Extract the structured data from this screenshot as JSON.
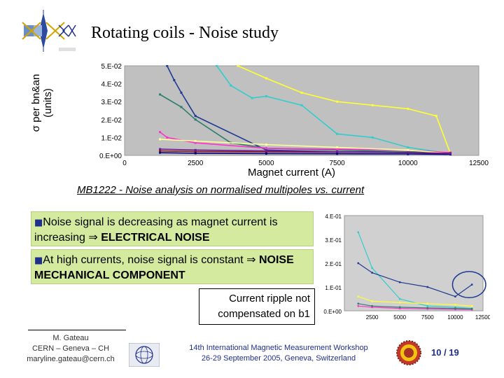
{
  "slide": {
    "title": "Rotating coils - Noise study",
    "caption": "MB1222 - Noise analysis on normalised multipoles vs. current",
    "notes": [
      {
        "text": "Noise signal is decreasing as magnet current is increasing ⇒ ",
        "emphasis": "ELECTRICAL NOISE"
      },
      {
        "text": "At high currents, noise signal is constant ⇒ ",
        "emphasis": "NOISE MECHANICAL COMPONENT"
      }
    ],
    "ripple_note": "Current ripple not compensated on b1",
    "footer": {
      "author_lines": [
        "M. Gateau",
        "CERN – Geneva – CH",
        "maryline.gateau@cern.ch"
      ],
      "workshop_lines": [
        "14th International Magnetic Measurement Workshop",
        "26-29 September 2005, Geneva, Switzerland"
      ],
      "page": "10 / 19"
    },
    "logo_icon": "immw-logo-icon",
    "cern_icon": "cern-logo-icon",
    "seal_icon": "university-seal-icon"
  },
  "chart_data": [
    {
      "type": "line",
      "ylabel": [
        "σ per bn&an",
        "(units)"
      ],
      "xlabel": "Magnet current (A)",
      "xlim": [
        0,
        12500
      ],
      "ylim": [
        0,
        0.05
      ],
      "xticks": [
        0,
        2500,
        5000,
        7500,
        10000,
        12500
      ],
      "yticks": [
        0,
        0.01,
        0.02,
        0.03,
        0.04,
        0.05
      ],
      "xtick_labels": [
        "0",
        "2500",
        "5000",
        "7500",
        "10000",
        "12500"
      ],
      "ytick_labels": [
        "0.E+00",
        "1.E-02",
        "2.E-02",
        "3.E-02",
        "4.E-02",
        "5.E-02"
      ],
      "grid": false,
      "colors": {
        "plot_bg": "#c0c0c0",
        "frame": "#9a9a9a"
      },
      "series": [
        {
          "color": "#1f3a93",
          "x": [
            1500,
            1750,
            2000,
            2500,
            5000,
            7500,
            10000,
            11500
          ],
          "y": [
            0.05,
            0.042,
            0.035,
            0.022,
            0.003,
            0.002,
            0.002,
            0.0015
          ]
        },
        {
          "color": "#ffff33",
          "x": [
            4000,
            5000,
            6250,
            7500,
            8750,
            10000,
            11000,
            11500
          ],
          "y": [
            0.05,
            0.043,
            0.035,
            0.03,
            0.028,
            0.026,
            0.022,
            0.001
          ]
        },
        {
          "color": "#33cccc",
          "x": [
            3250,
            3750,
            4500,
            5000,
            6250,
            7500,
            8750,
            10000,
            11500
          ],
          "y": [
            0.05,
            0.039,
            0.032,
            0.033,
            0.028,
            0.012,
            0.01,
            0.0045,
            0.001
          ]
        },
        {
          "color": "#2e7d6b",
          "x": [
            1250,
            2000,
            2500,
            3750,
            5000,
            7500,
            10000,
            11500
          ],
          "y": [
            0.034,
            0.027,
            0.02,
            0.007,
            0.004,
            0.003,
            0.002,
            0.0015
          ]
        },
        {
          "color": "#ff33cc",
          "x": [
            1250,
            1500,
            2500,
            5000,
            7500,
            10000,
            11500
          ],
          "y": [
            0.013,
            0.01,
            0.007,
            0.004,
            0.0035,
            0.003,
            0.0015
          ]
        },
        {
          "color": "#ffff99",
          "x": [
            1250,
            2500,
            5000,
            7500,
            10000,
            11500
          ],
          "y": [
            0.009,
            0.008,
            0.006,
            0.0045,
            0.003,
            0.001
          ]
        },
        {
          "color": "#8b1a1a",
          "x": [
            1250,
            2500,
            5000,
            7500,
            10000,
            11500
          ],
          "y": [
            0.0025,
            0.0022,
            0.002,
            0.0018,
            0.0016,
            0.0012
          ]
        },
        {
          "color": "#000080",
          "x": [
            1250,
            2500,
            5000,
            7500,
            10000,
            11500
          ],
          "y": [
            0.0015,
            0.0012,
            0.001,
            0.0009,
            0.0008,
            0.0006
          ]
        },
        {
          "color": "#6a1b9a",
          "x": [
            1250,
            2500,
            5000,
            7500,
            10000,
            11500
          ],
          "y": [
            0.0035,
            0.003,
            0.0025,
            0.002,
            0.0015,
            0.001
          ]
        }
      ]
    },
    {
      "type": "line",
      "xlim": [
        0,
        12500
      ],
      "ylim": [
        0,
        0.4
      ],
      "xticks": [
        2500,
        5000,
        7500,
        10000,
        12500
      ],
      "yticks": [
        0,
        0.1,
        0.2,
        0.3,
        0.4
      ],
      "xtick_labels": [
        "2500",
        "5000",
        "7500",
        "10000",
        "12500"
      ],
      "ytick_labels": [
        "0.E+00",
        "1.E-01",
        "2.E-01",
        "3.E-01",
        "4.E-01"
      ],
      "grid": false,
      "colors": {
        "plot_bg": "#d0d0d0",
        "annotation": "#1f3a93"
      },
      "annotation": {
        "shape": "ellipse",
        "cx": 11250,
        "cy": 0.11,
        "rx": 1500,
        "ry": 0.055
      },
      "series": [
        {
          "color": "#33cccc",
          "x": [
            1250,
            2500,
            5000,
            7500,
            10000,
            11500
          ],
          "y": [
            0.33,
            0.18,
            0.05,
            0.02,
            0.015,
            0.01
          ]
        },
        {
          "color": "#1f3a93",
          "x": [
            1250,
            2500,
            5000,
            7500,
            10000,
            11500
          ],
          "y": [
            0.2,
            0.16,
            0.12,
            0.1,
            0.06,
            0.11
          ]
        },
        {
          "color": "#ffff33",
          "x": [
            1250,
            2500,
            5000,
            7500,
            10000,
            11500
          ],
          "y": [
            0.06,
            0.04,
            0.035,
            0.03,
            0.025,
            0.02
          ]
        },
        {
          "color": "#ff33cc",
          "x": [
            1250,
            2500,
            5000,
            7500,
            10000,
            11500
          ],
          "y": [
            0.02,
            0.015,
            0.01,
            0.008,
            0.006,
            0.005
          ]
        },
        {
          "color": "#2e7d6b",
          "x": [
            1250,
            2500,
            5000,
            7500,
            10000,
            11500
          ],
          "y": [
            0.03,
            0.02,
            0.015,
            0.012,
            0.01,
            0.008
          ]
        }
      ]
    }
  ]
}
